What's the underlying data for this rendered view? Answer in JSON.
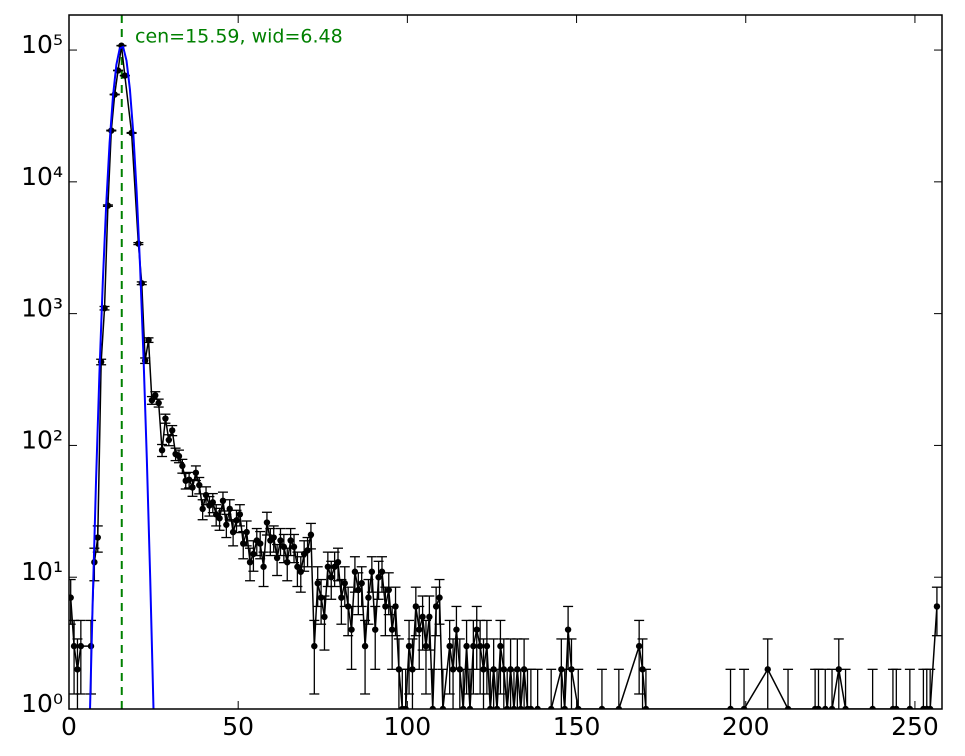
{
  "chart_data": {
    "type": "errorbar",
    "annotation": "cen=15.59, wid=6.48",
    "center_line": 15.59,
    "center_line_color": "#008000",
    "xscale": "linear",
    "yscale": "log",
    "xlim": [
      0,
      258
    ],
    "ylim": [
      1,
      184500
    ],
    "xticks": [
      0,
      50,
      100,
      150,
      200,
      250
    ],
    "yticks": [
      {
        "value": 1,
        "label": "10⁰"
      },
      {
        "value": 10,
        "label": "10¹"
      },
      {
        "value": 100,
        "label": "10²"
      },
      {
        "value": 1000,
        "label": "10³"
      },
      {
        "value": 10000,
        "label": "10⁴"
      },
      {
        "value": 100000,
        "label": "10⁵"
      }
    ],
    "series": [
      {
        "mode": "errorbar",
        "color": "#000000",
        "x": [
          0.5,
          1.5,
          2.5,
          3.5,
          6.5,
          7.5,
          8.5,
          9.5,
          10.5,
          11.5,
          12.5,
          13.5,
          14.5,
          15.5,
          16.5,
          18.5,
          20.5,
          21.5,
          22.5,
          23.5,
          24.5,
          25.5,
          26.5,
          27.5,
          28.5,
          29.5,
          30.5,
          31.5,
          32.5,
          33.5,
          34.5,
          35.5,
          36.5,
          37.5,
          38.5,
          39.5,
          40.5,
          41.5,
          42.5,
          43.5,
          44.5,
          45.5,
          46.5,
          47.5,
          48.5,
          49.5,
          50.5,
          51.5,
          52.5,
          53.5,
          54.5,
          55.5,
          56.5,
          57.5,
          58.5,
          59.5,
          60.5,
          61.5,
          62.5,
          63.5,
          64.5,
          65.5,
          66.5,
          67.5,
          68.5,
          69.5,
          70.5,
          71.5,
          72.5,
          73.5,
          74.5,
          75.5,
          76.5,
          77.5,
          78.5,
          79.5,
          80.5,
          81.5,
          82.5,
          83.5,
          84.5,
          85.5,
          86.5,
          87.5,
          88.5,
          89.5,
          90.5,
          91.5,
          92.5,
          93.5,
          94.5,
          95.5,
          96.5,
          97.5,
          98.5,
          99.5,
          100.5,
          101.5,
          102.5,
          103.5,
          104.5,
          105.5,
          106.5,
          107.5,
          108.5,
          109.5,
          110.5,
          112.5,
          113.5,
          114.5,
          115.5,
          116.5,
          117.5,
          118.5,
          119.5,
          120.5,
          121.5,
          122.5,
          123.5,
          124.5,
          125.5,
          126.5,
          127.5,
          128.5,
          129.5,
          130.5,
          131.5,
          132.5,
          133.5,
          134.5,
          135.5,
          136.5,
          138.5,
          142.5,
          145.5,
          146.5,
          147.5,
          148.5,
          150.5,
          157.5,
          162.5,
          168.5,
          169.5,
          170.5,
          195.5,
          199.5,
          206.5,
          212.5,
          220.5,
          221.5,
          223.5,
          225.5,
          227.5,
          229.5,
          237.5,
          243.5,
          244.5,
          248.5,
          252.5,
          253.5,
          254.5,
          256.5
        ],
        "values": [
          7,
          3,
          2,
          3,
          3,
          13,
          20,
          430,
          1100,
          6600,
          24500,
          46000,
          70000,
          108000,
          64000,
          23500,
          3400,
          1700,
          440,
          630,
          220,
          240,
          210,
          92,
          160,
          110,
          130,
          86,
          83,
          70,
          54,
          55,
          48,
          62,
          50,
          33,
          42,
          35,
          37,
          30,
          28,
          38,
          25,
          33,
          22,
          27,
          30,
          18,
          22,
          13,
          15,
          19,
          18,
          12,
          26,
          19,
          20,
          14,
          19,
          17,
          13,
          19,
          17,
          12,
          11,
          15,
          16,
          21,
          3,
          9,
          7,
          5,
          12,
          10,
          12,
          13,
          7,
          9,
          6,
          4,
          11,
          8,
          9,
          3,
          7,
          11,
          4,
          10,
          11,
          6,
          8,
          4,
          6,
          2,
          1,
          1,
          3,
          2,
          6,
          4,
          5,
          3,
          5,
          1,
          6,
          7,
          1,
          3,
          2,
          4,
          2,
          1,
          3,
          1,
          3,
          4,
          3,
          2,
          3,
          1,
          2,
          1,
          3,
          2,
          1,
          2,
          1,
          2,
          1,
          2,
          1,
          1,
          1,
          1,
          2,
          1,
          4,
          2,
          1,
          1,
          1,
          3,
          2,
          1,
          1,
          1,
          2,
          1,
          1,
          1,
          1,
          1,
          2,
          1,
          1,
          1,
          1,
          1,
          1,
          1,
          1,
          6
        ],
        "errors": [
          2.6,
          1.7,
          1.4,
          1.7,
          1.7,
          3.6,
          4.5,
          20.7,
          33.2,
          81.2,
          156.5,
          214.5,
          264.6,
          328.6,
          253,
          153.3,
          58.3,
          41.2,
          21,
          25.1,
          14.8,
          15.5,
          14.5,
          9.6,
          12.6,
          10.5,
          11.4,
          9.3,
          9.1,
          8.4,
          7.3,
          7.4,
          6.9,
          7.9,
          7.1,
          5.7,
          6.5,
          5.9,
          6.1,
          5.5,
          5.3,
          6.2,
          5,
          5.7,
          4.7,
          5.2,
          5.5,
          4.2,
          4.7,
          3.6,
          3.9,
          4.4,
          4.2,
          3.5,
          5.1,
          4.4,
          4.5,
          3.7,
          4.4,
          4.1,
          3.6,
          4.4,
          4.1,
          3.5,
          3.3,
          3.9,
          4,
          4.6,
          1.7,
          3,
          2.6,
          2.2,
          3.5,
          3.2,
          3.5,
          3.6,
          2.6,
          3,
          2.4,
          2,
          3.3,
          2.8,
          3,
          1.7,
          2.6,
          3.3,
          2,
          3.2,
          3.3,
          2.4,
          2.8,
          2,
          2.4,
          1.4,
          1,
          1,
          1.7,
          1.4,
          2.4,
          2,
          2.2,
          1.7,
          2.2,
          1,
          2.4,
          2.6,
          1,
          1.7,
          1.4,
          2,
          1.4,
          1,
          1.7,
          1,
          1.7,
          2,
          1.7,
          1.4,
          1.7,
          1,
          1.4,
          1,
          1.7,
          1.4,
          1,
          1.4,
          1,
          1.4,
          1,
          1.4,
          1,
          1,
          1,
          1,
          1.4,
          1,
          2,
          1.4,
          1,
          1,
          1,
          1.7,
          1.4,
          1,
          1,
          1,
          1.4,
          1,
          1,
          1,
          1,
          1,
          1.4,
          1,
          1,
          1,
          1,
          1,
          1,
          1,
          1,
          2.4
        ]
      },
      {
        "mode": "line",
        "color": "#0000ff",
        "x": [
          6,
          7,
          8,
          9,
          10,
          11,
          12,
          13,
          14,
          15,
          16,
          17,
          18,
          19,
          20,
          21,
          22,
          23,
          24,
          25
        ],
        "values": [
          0.6,
          6.5,
          55,
          357,
          1770,
          6750,
          19800,
          44700,
          77400,
          103000,
          105600,
          83100,
          50300,
          23400,
          8350,
          2300,
          484,
          79,
          9.8,
          0.94
        ]
      }
    ]
  }
}
